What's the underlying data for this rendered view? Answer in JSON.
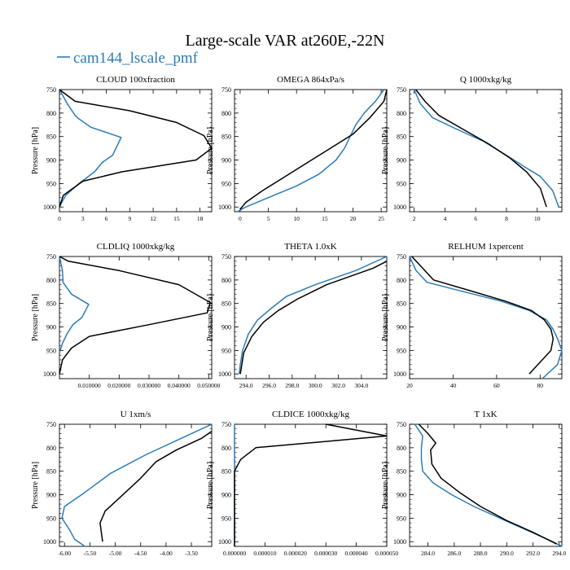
{
  "figure": {
    "title": "Large-scale VAR at260E,-22N",
    "legend": {
      "label": "cam144_lscale_pmf",
      "line_color": "#2b7bb9"
    }
  },
  "colors": {
    "series_blue": "#2b7bb9",
    "series_black": "#000000"
  },
  "chart_data": [
    {
      "type": "line",
      "title": "CLOUD  100xfraction",
      "ylabel": "Pressure [hPa]",
      "xlim": [
        0,
        19.5
      ],
      "ylim": [
        1010,
        750
      ],
      "xticks": [
        0,
        3,
        6,
        9,
        12,
        15,
        18
      ],
      "xtick_labels": [
        "0",
        "3",
        "6",
        "9",
        "12",
        "15",
        "18"
      ],
      "yticks": [
        750,
        800,
        850,
        900,
        950,
        1000
      ],
      "series": [
        {
          "color": "blue",
          "x": [
            0,
            1,
            2,
            2.3,
            4,
            7.9,
            6.8,
            5.5,
            4.5,
            2.5,
            0.8,
            0
          ],
          "y": [
            750,
            780,
            805,
            810,
            830,
            852,
            890,
            905,
            925,
            950,
            975,
            1000
          ]
        },
        {
          "color": "black",
          "x": [
            0,
            2,
            9,
            15,
            18.5,
            19.5,
            17.5,
            8,
            3,
            0.5,
            0
          ],
          "y": [
            750,
            775,
            795,
            820,
            848,
            875,
            900,
            925,
            945,
            975,
            1000
          ]
        }
      ]
    },
    {
      "type": "line",
      "title": "OMEGA  864xPa/s",
      "ylabel": "Pressure [hPa]",
      "xlim": [
        -1,
        26
      ],
      "ylim": [
        1010,
        750
      ],
      "xticks": [
        0,
        5,
        10,
        15,
        20,
        25
      ],
      "xtick_labels": [
        "0",
        "5",
        "10",
        "15",
        "20",
        "25"
      ],
      "yticks": [
        750,
        800,
        850,
        900,
        950,
        1000
      ],
      "series": [
        {
          "color": "blue",
          "x": [
            25.5,
            24,
            22,
            20.5,
            19.5,
            18.5,
            17,
            14,
            10,
            5,
            1,
            -0.5
          ],
          "y": [
            750,
            775,
            800,
            825,
            850,
            875,
            900,
            930,
            955,
            980,
            1000,
            1010
          ]
        },
        {
          "color": "black",
          "x": [
            26,
            25.5,
            23,
            20,
            16,
            12,
            8,
            4,
            1,
            0
          ],
          "y": [
            750,
            775,
            810,
            845,
            875,
            905,
            935,
            965,
            990,
            1005
          ]
        }
      ]
    },
    {
      "type": "line",
      "title": "Q  1000xkg/kg",
      "ylabel": "Pressure [hPa]",
      "xlim": [
        1.7,
        11.6
      ],
      "ylim": [
        1010,
        750
      ],
      "xticks": [
        2,
        4,
        6,
        8,
        10
      ],
      "xtick_labels": [
        "2",
        "4",
        "6",
        "8",
        "10"
      ],
      "yticks": [
        750,
        800,
        850,
        900,
        950,
        1000
      ],
      "series": [
        {
          "color": "blue",
          "x": [
            2,
            2.4,
            3.2,
            4.8,
            6.5,
            8,
            9.2,
            10.2,
            11,
            11.4
          ],
          "y": [
            750,
            780,
            810,
            835,
            860,
            890,
            915,
            935,
            965,
            1000
          ]
        },
        {
          "color": "black",
          "x": [
            2.1,
            2.7,
            3.6,
            5.2,
            6.8,
            8.2,
            9.3,
            10.2,
            10.6
          ],
          "y": [
            750,
            775,
            805,
            835,
            865,
            895,
            925,
            960,
            1000
          ]
        }
      ]
    },
    {
      "type": "line",
      "title": "CLDLIQ  1000xkg/kg",
      "ylabel": "Pressure [hPa]",
      "xlim": [
        0,
        0.051
      ],
      "ylim": [
        1010,
        750
      ],
      "xticks": [
        0.01,
        0.02,
        0.03,
        0.04,
        0.05
      ],
      "xtick_labels": [
        "0.010000",
        "0.020000",
        "0.030000",
        "0.040000",
        "0.050000"
      ],
      "yticks": [
        750,
        800,
        850,
        900,
        950,
        1000
      ],
      "series": [
        {
          "color": "blue",
          "x": [
            0,
            0.001,
            0.0012,
            0.004,
            0.0098,
            0.0075,
            0.0045,
            0.0025,
            0.001,
            0
          ],
          "y": [
            750,
            780,
            805,
            830,
            852,
            880,
            895,
            915,
            935,
            955
          ]
        },
        {
          "color": "black",
          "x": [
            0,
            0.003,
            0.02,
            0.04,
            0.0505,
            0.0495,
            0.03,
            0.01,
            0.004,
            0.001,
            0
          ],
          "y": [
            750,
            760,
            780,
            810,
            848,
            870,
            895,
            920,
            945,
            970,
            1000
          ]
        }
      ]
    },
    {
      "type": "line",
      "title": "THETA  1.0xK",
      "ylabel": "Pressure [hPa]",
      "xlim": [
        293,
        306.2
      ],
      "ylim": [
        1010,
        750
      ],
      "xticks": [
        294,
        296,
        298,
        300,
        302,
        304
      ],
      "xtick_labels": [
        "294.0",
        "296.0",
        "298.0",
        "300.0",
        "302.0",
        "304.0"
      ],
      "yticks": [
        750,
        800,
        850,
        900,
        950,
        1000
      ],
      "series": [
        {
          "color": "blue",
          "x": [
            306.2,
            303.5,
            300,
            297.5,
            296.2,
            295,
            294.2,
            293.7,
            293.5,
            293.4
          ],
          "y": [
            750,
            780,
            810,
            835,
            860,
            885,
            915,
            950,
            980,
            1000
          ]
        },
        {
          "color": "black",
          "x": [
            306.2,
            305,
            301,
            298.5,
            296.8,
            295.5,
            294.5,
            293.8,
            293.5
          ],
          "y": [
            760,
            775,
            810,
            840,
            865,
            890,
            920,
            955,
            1000
          ]
        }
      ]
    },
    {
      "type": "line",
      "title": "RELHUM  1xpercent",
      "ylabel": "Pressure [hPa]",
      "xlim": [
        20,
        90
      ],
      "ylim": [
        1010,
        750
      ],
      "xticks": [
        20,
        40,
        60,
        80
      ],
      "xtick_labels": [
        "20",
        "40",
        "60",
        "80"
      ],
      "yticks": [
        750,
        800,
        850,
        900,
        950,
        1000
      ],
      "series": [
        {
          "color": "blue",
          "x": [
            20,
            23,
            28,
            45,
            62,
            75,
            83,
            86,
            88,
            90,
            88,
            81
          ],
          "y": [
            750,
            780,
            805,
            825,
            845,
            865,
            885,
            905,
            925,
            950,
            980,
            1010
          ]
        },
        {
          "color": "black",
          "x": [
            21,
            25,
            31,
            48,
            64,
            76,
            82,
            85,
            86,
            85,
            80,
            75
          ],
          "y": [
            750,
            770,
            800,
            823,
            845,
            865,
            885,
            905,
            925,
            950,
            975,
            1000
          ]
        }
      ]
    },
    {
      "type": "line",
      "title": "U  1xm/s",
      "ylabel": "Pressure [hPa]",
      "xlim": [
        -6.1,
        -3.1
      ],
      "ylim": [
        1010,
        750
      ],
      "xticks": [
        -6,
        -5.5,
        -5,
        -4.5,
        -4,
        -3.5
      ],
      "xtick_labels": [
        "-6.00",
        "-5.50",
        "-5.00",
        "-4.50",
        "-4.00",
        "-3.50"
      ],
      "yticks": [
        750,
        800,
        850,
        900,
        950,
        1000
      ],
      "series": [
        {
          "color": "blue",
          "x": [
            -3.1,
            -3.6,
            -4.4,
            -5.1,
            -5.6,
            -6.0,
            -6.05,
            -5.9,
            -5.8,
            -5.6
          ],
          "y": [
            750,
            775,
            815,
            855,
            895,
            925,
            950,
            975,
            995,
            1010
          ]
        },
        {
          "color": "black",
          "x": [
            -3.1,
            -3.3,
            -3.8,
            -4.2,
            -4.5,
            -4.9,
            -5.2,
            -5.3,
            -5.25
          ],
          "y": [
            765,
            780,
            805,
            830,
            865,
            905,
            935,
            960,
            1000
          ]
        }
      ]
    },
    {
      "type": "line",
      "title": "CLDICE  1000xkg/kg",
      "ylabel": "Pressure [hPa]",
      "xlim": [
        0,
        5e-05
      ],
      "ylim": [
        1010,
        750
      ],
      "xticks": [
        0,
        1e-05,
        2e-05,
        3e-05,
        4e-05,
        5e-05
      ],
      "xtick_labels": [
        "0.000000",
        "0.000010",
        "0.000020",
        "0.000030",
        "0.000040",
        "0.000050"
      ],
      "yticks": [
        750,
        800,
        850,
        900,
        950,
        1000
      ],
      "series": [
        {
          "color": "blue",
          "x": [
            0,
            0
          ],
          "y": [
            750,
            1010
          ]
        },
        {
          "color": "black",
          "x": [
            3e-05,
            5e-05,
            7e-06,
            2e-06,
            0,
            0
          ],
          "y": [
            750,
            775,
            800,
            825,
            850,
            1010
          ]
        }
      ]
    },
    {
      "type": "line",
      "title": "T  1xK",
      "ylabel": "Pressure [hPa]",
      "xlim": [
        282.6,
        294.2
      ],
      "ylim": [
        1010,
        750
      ],
      "xticks": [
        284,
        286,
        288,
        290,
        292,
        294
      ],
      "xtick_labels": [
        "284.0",
        "286.0",
        "288.0",
        "290.0",
        "292.0",
        "294.0"
      ],
      "yticks": [
        750,
        800,
        850,
        900,
        950,
        1000
      ],
      "series": [
        {
          "color": "blue",
          "x": [
            283,
            283.6,
            283.5,
            283.5,
            283.6,
            284.4,
            285.8,
            287.5,
            289.5,
            291.5,
            293.5,
            294.2
          ],
          "y": [
            750,
            775,
            800,
            825,
            850,
            875,
            900,
            925,
            950,
            975,
            1000,
            1010
          ]
        },
        {
          "color": "black",
          "x": [
            283.3,
            284,
            284.6,
            284.2,
            284.3,
            285,
            286.4,
            288,
            290,
            292,
            293.8
          ],
          "y": [
            750,
            770,
            790,
            805,
            835,
            865,
            895,
            925,
            955,
            980,
            1005
          ]
        }
      ]
    }
  ]
}
